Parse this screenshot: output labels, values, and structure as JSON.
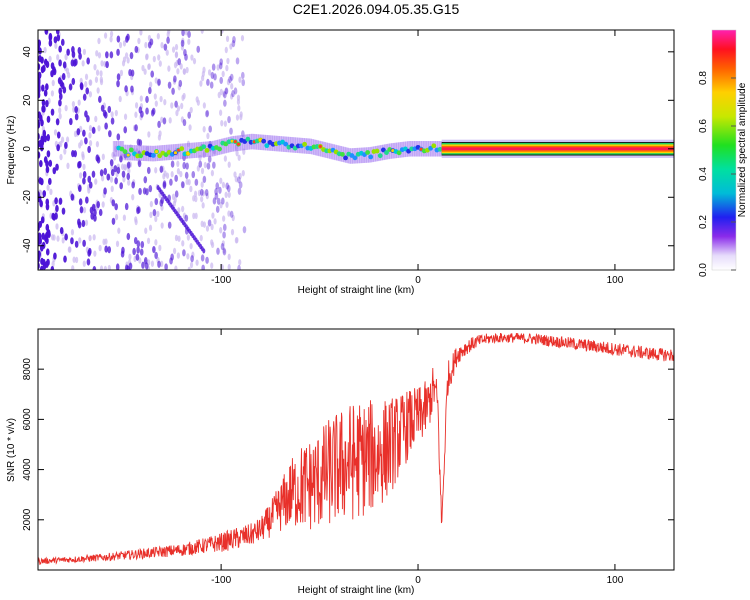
{
  "title": "C2E1.2026.094.05.35.G15",
  "colors": {
    "snr_line": "#e8302a",
    "frame": "#000000",
    "spec_sparse": "#c9b6f0",
    "spec_dense": "#4b12d6"
  },
  "chart_data": [
    {
      "type": "heatmap",
      "title": "C2E1.2026.094.05.35.G15",
      "xlabel": "Height of straight line (km)",
      "ylabel": "Frequency (Hz)",
      "xlim": [
        -193,
        130
      ],
      "ylim": [
        -50,
        49
      ],
      "xticks": [
        -100,
        0,
        100
      ],
      "yticks": [
        -40,
        -20,
        0,
        20,
        40
      ],
      "xtick_labels": [
        "-100",
        "0",
        "100"
      ],
      "ytick_labels": [
        "-40",
        "-20",
        "0",
        "20",
        "40"
      ],
      "colorbar": {
        "label": "Normalized spectral amplitude",
        "range": [
          0,
          1
        ],
        "ticks": [
          0.0,
          0.2,
          0.4,
          0.6,
          0.8
        ],
        "tick_labels": [
          "0.0",
          "0.2",
          "0.4",
          "0.6",
          "0.8"
        ]
      },
      "signal_track": [
        {
          "x": -150,
          "y": -1.5
        },
        {
          "x": -135,
          "y": -2
        },
        {
          "x": -120,
          "y": -1
        },
        {
          "x": -105,
          "y": 0
        },
        {
          "x": -95,
          "y": 2
        },
        {
          "x": -85,
          "y": 3
        },
        {
          "x": -70,
          "y": 2
        },
        {
          "x": -55,
          "y": 1
        },
        {
          "x": -45,
          "y": -1
        },
        {
          "x": -35,
          "y": -3
        },
        {
          "x": -25,
          "y": -2.5
        },
        {
          "x": -15,
          "y": -1
        },
        {
          "x": -5,
          "y": 0
        },
        {
          "x": 5,
          "y": 0
        },
        {
          "x": 15,
          "y": 0
        },
        {
          "x": 130,
          "y": 0
        }
      ],
      "noise_region_xmax": -88
    },
    {
      "type": "line",
      "xlabel": "Height of straight line (km)",
      "ylabel": "SNR (10 * v/v)",
      "xlim": [
        -193,
        130
      ],
      "ylim": [
        0,
        9600
      ],
      "xticks": [
        -100,
        0,
        100
      ],
      "yticks": [
        2000,
        4000,
        6000,
        8000
      ],
      "xtick_labels": [
        "-100",
        "0",
        "100"
      ],
      "ytick_labels": [
        "2000",
        "4000",
        "6000",
        "8000"
      ],
      "series": [
        {
          "name": "SNR",
          "x": [
            -193,
            -180,
            -160,
            -140,
            -120,
            -110,
            -100,
            -95,
            -90,
            -85,
            -80,
            -75,
            -70,
            -65,
            -60,
            -55,
            -50,
            -45,
            -40,
            -35,
            -30,
            -25,
            -20,
            -15,
            -10,
            -5,
            0,
            5,
            8,
            10,
            12,
            15,
            18,
            20,
            25,
            30,
            35,
            40,
            50,
            60,
            70,
            80,
            90,
            100,
            110,
            120,
            130
          ],
          "values": [
            350,
            400,
            500,
            650,
            800,
            950,
            1100,
            1200,
            1300,
            1400,
            1600,
            2000,
            2500,
            3000,
            3300,
            3400,
            3600,
            3900,
            4100,
            4300,
            4400,
            4500,
            4600,
            4900,
            5300,
            5800,
            6100,
            6500,
            7300,
            6600,
            1700,
            7600,
            8200,
            8600,
            8900,
            9100,
            9200,
            9250,
            9250,
            9200,
            9100,
            9000,
            8900,
            8800,
            8700,
            8600,
            8550
          ],
          "amplitude": [
            120,
            120,
            150,
            200,
            250,
            300,
            380,
            420,
            450,
            450,
            500,
            700,
            1000,
            1400,
            1700,
            1900,
            2000,
            2200,
            2300,
            2400,
            2400,
            2300,
            2200,
            2000,
            1700,
            1400,
            1200,
            1100,
            900,
            900,
            400,
            700,
            500,
            400,
            300,
            250,
            220,
            200,
            200,
            220,
            230,
            250,
            260,
            260,
            260,
            260,
            260
          ]
        }
      ]
    }
  ]
}
